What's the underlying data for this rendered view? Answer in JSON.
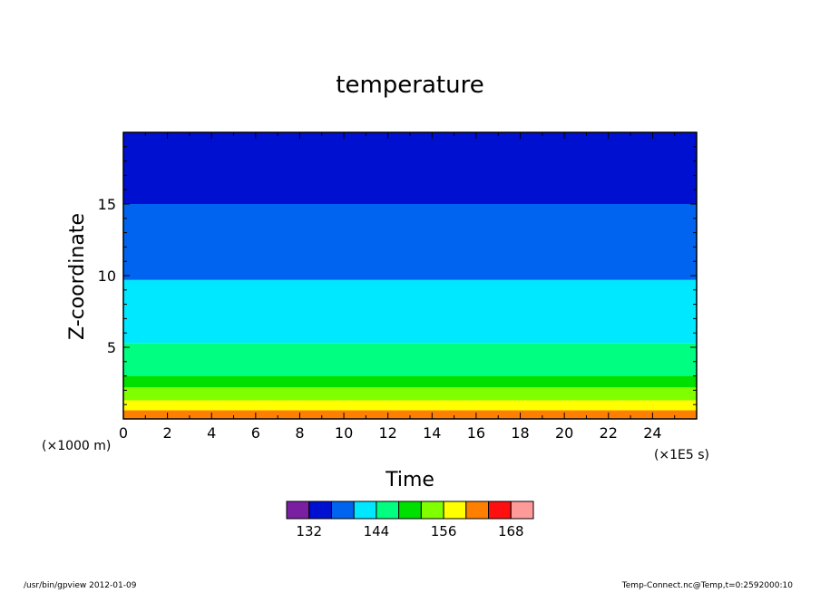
{
  "chart_data": {
    "type": "heatmap",
    "title": "temperature",
    "xlabel": "Time",
    "ylabel": "Z-coordinate",
    "x_scale_label": "(×1E5 s)",
    "y_scale_label": "(×1000 m)",
    "xlim": [
      0,
      26
    ],
    "ylim": [
      0,
      20
    ],
    "x_ticks": [
      0,
      2,
      4,
      6,
      8,
      10,
      12,
      14,
      16,
      18,
      20,
      22,
      24
    ],
    "y_ticks": [
      5,
      10,
      15
    ],
    "grid": false,
    "bands": [
      {
        "z_bottom": 0.0,
        "z_top": 0.6,
        "level": "160-164",
        "color": "#ff7f00"
      },
      {
        "z_bottom": 0.6,
        "z_top": 1.3,
        "level": "156-160",
        "color": "#ffff00"
      },
      {
        "z_bottom": 1.3,
        "z_top": 2.2,
        "level": "152-156",
        "color": "#80ff00"
      },
      {
        "z_bottom": 2.2,
        "z_top": 3.0,
        "level": "148-152",
        "color": "#00e000"
      },
      {
        "z_bottom": 3.0,
        "z_top": 5.3,
        "level": "144-148",
        "color": "#00ff80"
      },
      {
        "z_bottom": 5.3,
        "z_top": 9.7,
        "level": "140-144",
        "color": "#00e8ff"
      },
      {
        "z_bottom": 9.7,
        "z_top": 15.0,
        "level": "136-140",
        "color": "#0064f0"
      },
      {
        "z_bottom": 15.0,
        "z_top": 20.0,
        "level": "132-136",
        "color": "#0010d0"
      }
    ],
    "colorbar": {
      "colors": [
        "#7a1fa2",
        "#0010d0",
        "#0064f0",
        "#00e8ff",
        "#00ff80",
        "#00e000",
        "#80ff00",
        "#ffff00",
        "#ff7f00",
        "#ff1010",
        "#ff9a9a"
      ],
      "tick_labels": [
        "132",
        "144",
        "156",
        "168"
      ],
      "tick_values": [
        132,
        144,
        156,
        168
      ],
      "range": [
        128,
        172
      ]
    }
  },
  "footer": {
    "left": "/usr/bin/gpview   2012-01-09",
    "right": "Temp-Connect.nc@Temp,t=0:2592000:10"
  }
}
